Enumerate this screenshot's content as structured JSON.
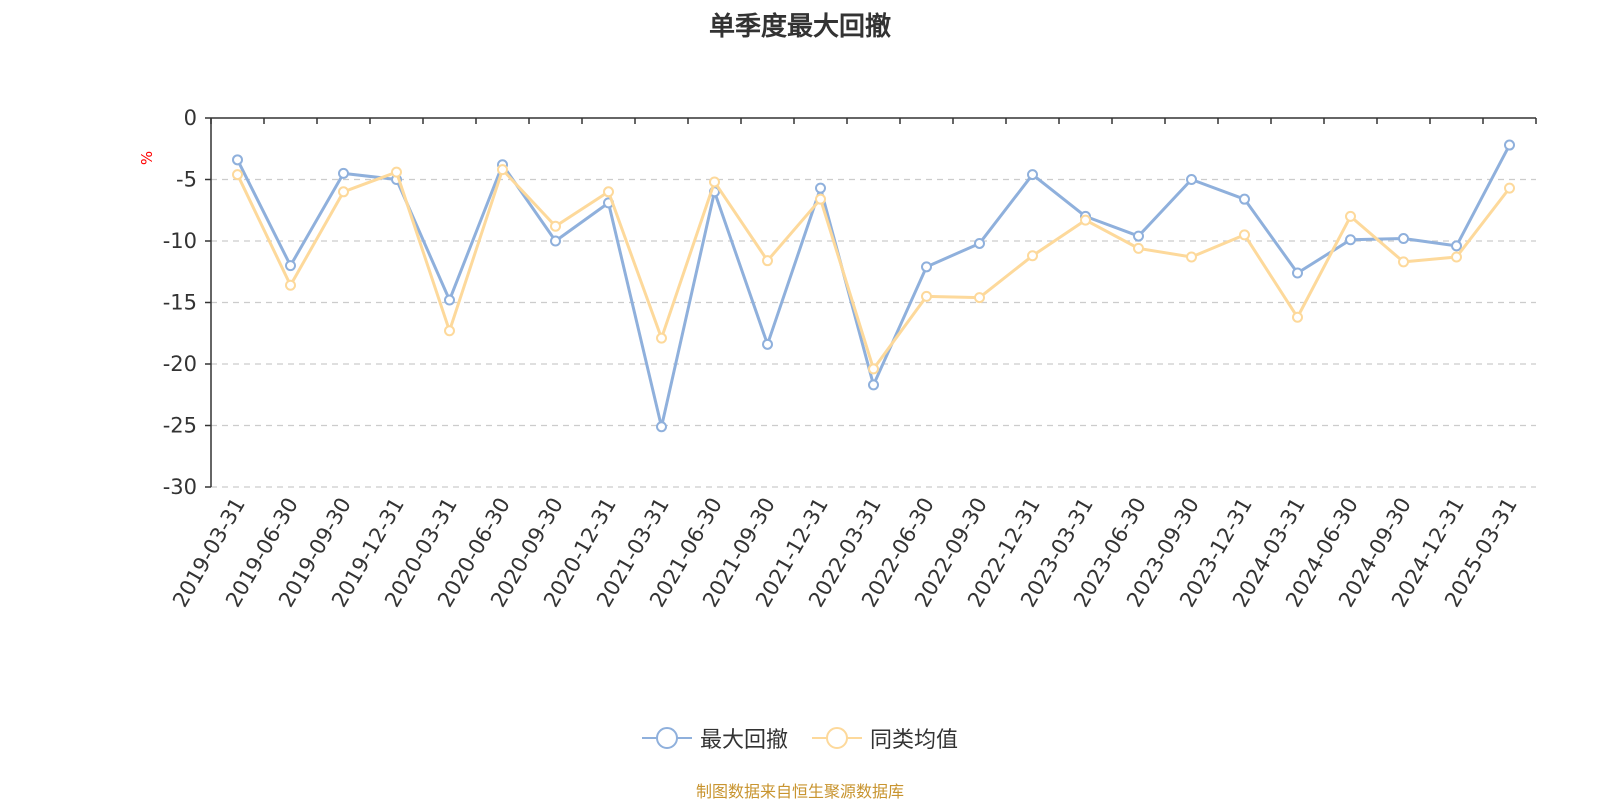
{
  "title": "单季度最大回撤",
  "source_note": "制图数据来自恒生聚源数据库",
  "colors": {
    "series_1": "#8fb0dc",
    "series_2": "#fdd99b",
    "unit_label": "#ff0000",
    "source_note": "#c8942f",
    "axis": "#333333",
    "grid": "#cccccc"
  },
  "chart_data": {
    "type": "line",
    "title": "单季度最大回撤",
    "ylabel": "%",
    "xlabel": "",
    "ylim": [
      -30,
      0
    ],
    "yticks": [
      0,
      -5,
      -10,
      -15,
      -20,
      -25,
      -30
    ],
    "grid": "horizontal dashed",
    "legend_position": "bottom",
    "categories": [
      "2019-03-31",
      "2019-06-30",
      "2019-09-30",
      "2019-12-31",
      "2020-03-31",
      "2020-06-30",
      "2020-09-30",
      "2020-12-31",
      "2021-03-31",
      "2021-06-30",
      "2021-09-30",
      "2021-12-31",
      "2022-03-31",
      "2022-06-30",
      "2022-09-30",
      "2022-12-31",
      "2023-03-31",
      "2023-06-30",
      "2023-09-30",
      "2023-12-31",
      "2024-03-31",
      "2024-06-30",
      "2024-09-30",
      "2024-12-31",
      "2025-03-31"
    ],
    "series": [
      {
        "name": "最大回撤",
        "color": "#8fb0dc",
        "values": [
          -3.4,
          -12.0,
          -4.5,
          -5.0,
          -14.8,
          -3.8,
          -10.0,
          -6.9,
          -25.1,
          -6.0,
          -18.4,
          -5.7,
          -21.7,
          -12.1,
          -10.2,
          -4.6,
          -8.0,
          -9.6,
          -5.0,
          -6.6,
          -12.6,
          -9.9,
          -9.8,
          -10.4,
          -2.2
        ]
      },
      {
        "name": "同类均值",
        "color": "#fdd99b",
        "values": [
          -4.6,
          -13.6,
          -6.0,
          -4.4,
          -17.3,
          -4.2,
          -8.8,
          -6.0,
          -17.9,
          -5.2,
          -11.6,
          -6.6,
          -20.4,
          -14.5,
          -14.6,
          -11.2,
          -8.3,
          -10.6,
          -11.3,
          -9.5,
          -16.2,
          -8.0,
          -11.7,
          -11.3,
          -5.7
        ]
      }
    ]
  }
}
